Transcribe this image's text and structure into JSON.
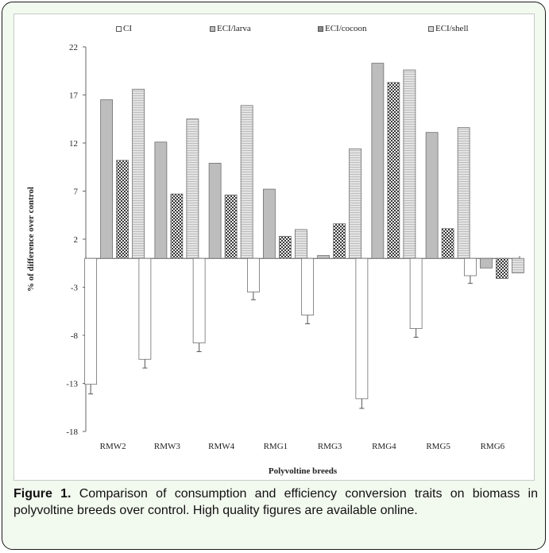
{
  "chart_data": {
    "type": "bar",
    "title": "",
    "xlabel": "Polyvoltine breeds",
    "ylabel": "% of difference over control",
    "ylim": [
      -18,
      22
    ],
    "yticks": [
      22,
      17,
      12,
      7,
      2,
      -3,
      -8,
      -13,
      -18
    ],
    "categories": [
      "RMW2",
      "RMW3",
      "RMW4",
      "RMG1",
      "RMG3",
      "RMG4",
      "RMG5",
      "RMG6"
    ],
    "series": [
      {
        "name": "CI",
        "values": [
          -13.1,
          -10.5,
          -8.8,
          -3.5,
          -5.9,
          -14.6,
          -7.3,
          -1.8
        ],
        "errors": [
          1.0,
          0.9,
          0.9,
          0.8,
          0.9,
          1.0,
          0.9,
          0.8
        ],
        "color": "#ffffff",
        "pattern": "none"
      },
      {
        "name": "ECI/larva",
        "values": [
          16.5,
          12.1,
          9.9,
          7.2,
          0.3,
          20.3,
          13.1,
          -1.0
        ],
        "color": "#bdbdbd",
        "pattern": "none"
      },
      {
        "name": "ECI/cocoon",
        "values": [
          10.2,
          6.7,
          6.6,
          2.3,
          3.6,
          18.3,
          3.1,
          -2.1
        ],
        "color": "#8a8a8a",
        "pattern": "check"
      },
      {
        "name": "ECI/shell",
        "values": [
          17.6,
          14.5,
          15.9,
          3.0,
          11.4,
          19.6,
          13.6,
          -1.5
        ],
        "color": "#d9d9d9",
        "pattern": "stripe"
      }
    ],
    "legend_position": "top",
    "grid": false
  },
  "caption": {
    "label": "Figure 1.",
    "text": " Comparison of consumption and efficiency conversion traits on biomass in polyvoltine breeds over control. High quality figures are available online."
  }
}
